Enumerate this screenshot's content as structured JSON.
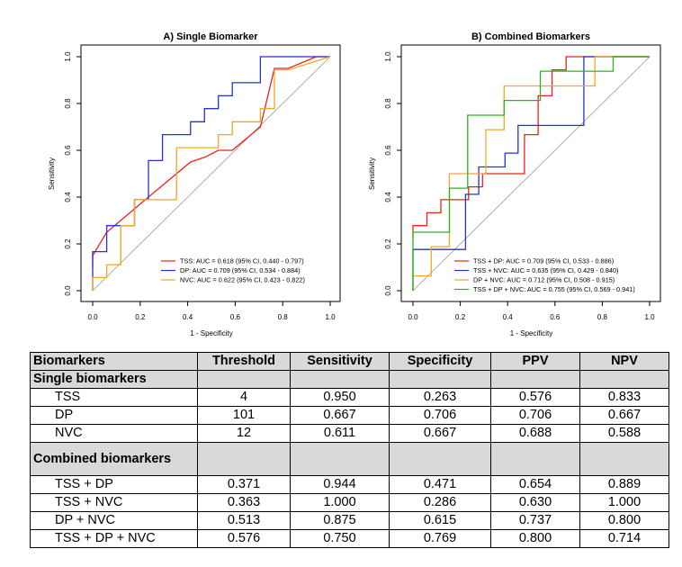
{
  "chart_data": [
    {
      "type": "line",
      "title": "A) Single Biomarker",
      "xlabel": "1 - Specificity",
      "ylabel": "Sensitivity",
      "xlim": [
        0,
        1
      ],
      "ylim": [
        0,
        1
      ],
      "xticks": [
        "0.0",
        "0.2",
        "0.4",
        "0.6",
        "0.8",
        "1.0"
      ],
      "yticks": [
        "0.0",
        "0.2",
        "0.4",
        "0.6",
        "0.8",
        "1.0"
      ],
      "grid": false,
      "legend_position": "bottom-right",
      "diagonal_reference": true,
      "series": [
        {
          "name": "TSS: AUC = 0.618 (95% CI, 0.440 - 0.797)",
          "color": "#e8231b",
          "x": [
            0.0,
            0.0,
            0.059,
            0.118,
            0.176,
            0.235,
            0.294,
            0.412,
            0.471,
            0.529,
            0.588,
            0.706,
            0.765,
            0.824,
            0.941,
            1.0
          ],
          "y": [
            0.1,
            0.15,
            0.25,
            0.3,
            0.35,
            0.4,
            0.45,
            0.55,
            0.57,
            0.6,
            0.6,
            0.7,
            0.95,
            0.95,
            1.0,
            1.0
          ]
        },
        {
          "name": "DP: AUC = 0.709 (95% CI, 0.534 - 0.884)",
          "color": "#2432d3",
          "x": [
            0.0,
            0.0,
            0.059,
            0.059,
            0.176,
            0.176,
            0.235,
            0.235,
            0.294,
            0.294,
            0.412,
            0.412,
            0.471,
            0.471,
            0.529,
            0.529,
            0.588,
            0.588,
            0.706,
            0.706,
            0.824,
            1.0
          ],
          "y": [
            0.0,
            0.167,
            0.167,
            0.278,
            0.278,
            0.389,
            0.389,
            0.556,
            0.556,
            0.667,
            0.667,
            0.722,
            0.722,
            0.778,
            0.778,
            0.833,
            0.833,
            0.889,
            0.889,
            1.0,
            1.0,
            1.0
          ]
        },
        {
          "name": "NVC: AUC = 0.622 (95% CI, 0.423 - 0.822)",
          "color": "#f5a623",
          "x": [
            0.0,
            0.0,
            0.059,
            0.059,
            0.118,
            0.118,
            0.176,
            0.176,
            0.353,
            0.353,
            0.471,
            0.471,
            0.529,
            0.529,
            0.588,
            0.588,
            0.667,
            0.667,
            0.706,
            0.706,
            0.765,
            0.765,
            0.824,
            1.0
          ],
          "y": [
            0.0,
            0.056,
            0.056,
            0.111,
            0.111,
            0.278,
            0.278,
            0.389,
            0.389,
            0.611,
            0.611,
            0.611,
            0.611,
            0.667,
            0.667,
            0.722,
            0.722,
            0.722,
            0.722,
            0.778,
            0.778,
            0.944,
            0.944,
            1.0
          ]
        }
      ]
    },
    {
      "type": "line",
      "title": "B) Combined Biomarkers",
      "xlabel": "1 - Specificity",
      "ylabel": "Sensitivity",
      "xlim": [
        0,
        1
      ],
      "ylim": [
        0,
        1
      ],
      "xticks": [
        "0.0",
        "0.2",
        "0.4",
        "0.6",
        "0.8",
        "1.0"
      ],
      "yticks": [
        "0.0",
        "0.2",
        "0.4",
        "0.6",
        "0.8",
        "1.0"
      ],
      "grid": false,
      "legend_position": "bottom-right",
      "diagonal_reference": true,
      "series": [
        {
          "name": "TSS + DP: AUC = 0.709 (95% CI, 0.533 - 0.886)",
          "color": "#e8231b",
          "x": [
            0.0,
            0.0,
            0.059,
            0.059,
            0.118,
            0.118,
            0.176,
            0.176,
            0.235,
            0.235,
            0.294,
            0.294,
            0.471,
            0.471,
            0.529,
            0.529,
            0.588,
            0.588,
            0.647,
            0.647,
            0.706,
            1.0
          ],
          "y": [
            0.222,
            0.278,
            0.278,
            0.333,
            0.333,
            0.389,
            0.389,
            0.389,
            0.389,
            0.444,
            0.444,
            0.5,
            0.5,
            0.667,
            0.667,
            0.833,
            0.833,
            0.944,
            0.944,
            1.0,
            1.0,
            1.0
          ]
        },
        {
          "name": "TSS + NVC: AUC = 0.635 (95% CI, 0.429 - 0.840)",
          "color": "#2432d3",
          "x": [
            0.0,
            0.0,
            0.222,
            0.222,
            0.278,
            0.278,
            0.333,
            0.333,
            0.389,
            0.389,
            0.444,
            0.444,
            0.5,
            0.5,
            0.722,
            0.722,
            0.833,
            1.0
          ],
          "y": [
            0.0,
            0.176,
            0.176,
            0.412,
            0.412,
            0.529,
            0.529,
            0.529,
            0.529,
            0.588,
            0.588,
            0.706,
            0.706,
            0.706,
            0.706,
            1.0,
            1.0,
            1.0
          ]
        },
        {
          "name": "DP + NVC: AUC = 0.712 (95% CI, 0.508 - 0.915)",
          "color": "#f5a623",
          "x": [
            0.0,
            0.0,
            0.077,
            0.077,
            0.154,
            0.154,
            0.308,
            0.308,
            0.385,
            0.385,
            0.538,
            0.538,
            0.615,
            0.615,
            0.769,
            0.769,
            1.0
          ],
          "y": [
            0.0,
            0.063,
            0.063,
            0.188,
            0.188,
            0.5,
            0.5,
            0.688,
            0.688,
            0.875,
            0.875,
            0.875,
            0.875,
            0.875,
            0.875,
            1.0,
            1.0
          ]
        },
        {
          "name": "TSS + DP + NVC: AUC = 0.755 (95% CI, 0.569 - 0.941)",
          "color": "#2bb31f",
          "x": [
            0.0,
            0.0,
            0.154,
            0.154,
            0.231,
            0.231,
            0.385,
            0.385,
            0.538,
            0.538,
            0.615,
            0.615,
            0.846,
            0.846,
            1.0
          ],
          "y": [
            0.0,
            0.25,
            0.25,
            0.438,
            0.438,
            0.75,
            0.75,
            0.813,
            0.813,
            0.938,
            0.938,
            0.938,
            0.938,
            1.0,
            1.0
          ]
        }
      ]
    },
    {
      "type": "table",
      "columns": [
        "Biomarkers",
        "Threshold",
        "Sensitivity",
        "Specificity",
        "PPV",
        "NPV"
      ],
      "sections": [
        {
          "title": "Single biomarkers",
          "rows": [
            [
              "TSS",
              "4",
              "0.950",
              "0.263",
              "0.576",
              "0.833"
            ],
            [
              "DP",
              "101",
              "0.667",
              "0.706",
              "0.706",
              "0.667"
            ],
            [
              "NVC",
              "12",
              "0.611",
              "0.667",
              "0.688",
              "0.588"
            ]
          ]
        },
        {
          "title": "Combined biomarkers",
          "rows": [
            [
              "TSS + DP",
              "0.371",
              "0.944",
              "0.471",
              "0.654",
              "0.889"
            ],
            [
              "TSS + NVC",
              "0.363",
              "1.000",
              "0.286",
              "0.630",
              "1.000"
            ],
            [
              "DP + NVC",
              "0.513",
              "0.875",
              "0.615",
              "0.737",
              "0.800"
            ],
            [
              "TSS + DP + NVC",
              "0.576",
              "0.750",
              "0.769",
              "0.800",
              "0.714"
            ]
          ]
        }
      ]
    }
  ]
}
